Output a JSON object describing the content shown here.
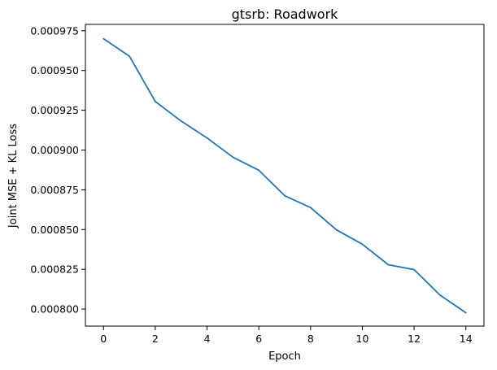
{
  "chart_data": {
    "type": "line",
    "title": "gtsrb: Roadwork",
    "xlabel": "Epoch",
    "ylabel": "Joint MSE + KL Loss",
    "xlim": [
      -0.7,
      14.7
    ],
    "ylim": [
      0.0007893,
      0.000979
    ],
    "xticks": [
      0,
      2,
      4,
      6,
      8,
      10,
      12,
      14
    ],
    "yticks": [
      0.0008,
      0.000825,
      0.00085,
      0.000875,
      0.0009,
      0.000925,
      0.00095,
      0.000975
    ],
    "ytick_labels": [
      "0.000800",
      "0.000825",
      "0.000850",
      "0.000875",
      "0.000900",
      "0.000925",
      "0.000950",
      "0.000975"
    ],
    "grid": false,
    "x": [
      0,
      1,
      2,
      3,
      4,
      5,
      6,
      7,
      8,
      9,
      10,
      11,
      12,
      13,
      14
    ],
    "series": [
      {
        "color": "#1f77b4",
        "values": [
          0.00097,
          0.000959,
          0.0009305,
          0.0009182,
          0.0009076,
          0.0008955,
          0.0008873,
          0.0008713,
          0.0008638,
          0.0008498,
          0.0008408,
          0.0008279,
          0.0008248,
          0.0008088,
          0.0007977
        ]
      }
    ]
  }
}
